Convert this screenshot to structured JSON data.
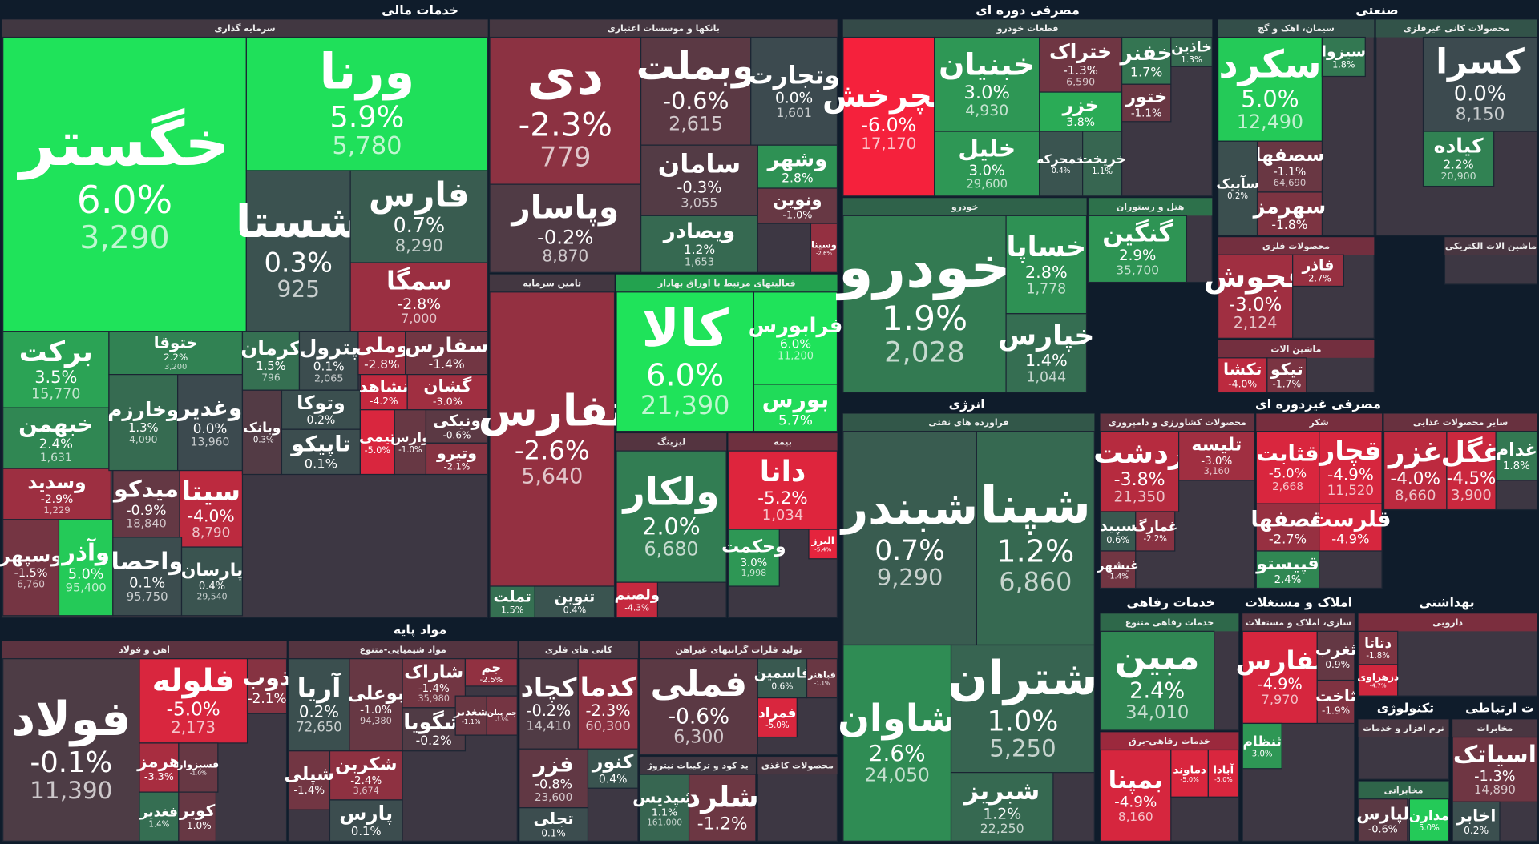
{
  "sectors": [
    {
      "title": "خدمات مالی",
      "groups": [
        {
          "title": "سرمایه گذاری",
          "tiles": [
            {
              "name": "خگستر",
              "change": "6.0%",
              "price": "3,290"
            },
            {
              "name": "ورنا",
              "change": "5.9%",
              "price": "5,780"
            },
            {
              "name": "شستا",
              "change": "0.3%",
              "price": "925"
            },
            {
              "name": "فارس",
              "change": "0.7%",
              "price": "8,290"
            },
            {
              "name": "سمگا",
              "change": "-2.8%",
              "price": "7,000"
            },
            {
              "name": "برکت",
              "change": "3.5%",
              "price": "15,770"
            },
            {
              "name": "خبهمن",
              "change": "2.4%",
              "price": "1,631"
            },
            {
              "name": "وسدید",
              "change": "-2.9%",
              "price": "1,229"
            },
            {
              "name": "وسپهر",
              "change": "-1.5%",
              "price": "6,760"
            },
            {
              "name": "وآذر",
              "change": "5.0%",
              "price": "95,400"
            },
            {
              "name": "ختوقا",
              "change": "2.2%",
              "price": "3,200"
            },
            {
              "name": "وخارزم",
              "change": "1.3%",
              "price": "4,090"
            },
            {
              "name": "وغدیر",
              "change": "0.0%",
              "price": "13,960"
            },
            {
              "name": "میدکو",
              "change": "-0.9%",
              "price": "18,840"
            },
            {
              "name": "سیتا",
              "change": "-4.0%",
              "price": "8,790"
            },
            {
              "name": "واحصا",
              "change": "0.1%",
              "price": "95,750"
            },
            {
              "name": "پارسان",
              "change": "0.4%",
              "price": "29,540"
            },
            {
              "name": "کرمان",
              "change": "1.5%",
              "price": "796"
            },
            {
              "name": "پترول",
              "change": "0.1%",
              "price": "2,065"
            },
            {
              "name": "وملی",
              "change": "-2.8%"
            },
            {
              "name": "سفارس",
              "change": "-1.4%"
            },
            {
              "name": "وتوکا",
              "change": "0.2%"
            },
            {
              "name": "نشاهد",
              "change": "-4.2%"
            },
            {
              "name": "گشان",
              "change": "-3.0%"
            },
            {
              "name": "وبانک",
              "change": "-0.3%"
            },
            {
              "name": "تاپیکو",
              "change": "0.1%"
            },
            {
              "name": "تیمی",
              "change": "-5.0%"
            },
            {
              "name": "وارس",
              "change": "-1.0%"
            },
            {
              "name": "ونیکی",
              "change": "-0.6%"
            },
            {
              "name": "وتیرو",
              "change": "-2.1%"
            }
          ]
        },
        {
          "title": "بانکها و موسسات اعتباری",
          "tiles": [
            {
              "name": "دی",
              "change": "-2.3%",
              "price": "779"
            },
            {
              "name": "وپاسار",
              "change": "-0.2%",
              "price": "8,870"
            },
            {
              "name": "وبملت",
              "change": "-0.6%",
              "price": "2,615"
            },
            {
              "name": "وتجارت",
              "change": "0.0%",
              "price": "1,601"
            },
            {
              "name": "سامان",
              "change": "-0.3%",
              "price": "3,055"
            },
            {
              "name": "ویصادر",
              "change": "1.2%",
              "price": "1,653"
            },
            {
              "name": "وشهر",
              "change": "2.8%"
            },
            {
              "name": "ونوین",
              "change": "-1.0%"
            },
            {
              "name": "وسینا",
              "change": "-2.6%"
            }
          ]
        },
        {
          "title": "تامین سرمایه",
          "tiles": [
            {
              "name": "تفارس",
              "change": "-2.6%",
              "price": "5,640"
            },
            {
              "name": "تملت",
              "change": "1.5%"
            },
            {
              "name": "تنوین",
              "change": "0.4%"
            }
          ]
        },
        {
          "title": "فعالیتهای مرتبط با اوراق بهادار",
          "tiles": [
            {
              "name": "کالا",
              "change": "6.0%",
              "price": "21,390"
            },
            {
              "name": "فرابورس",
              "change": "6.0%",
              "price": "11,200"
            },
            {
              "name": "بورس",
              "change": "5.7%"
            }
          ]
        },
        {
          "title": "لیزینگ",
          "tiles": [
            {
              "name": "ولکار",
              "change": "2.0%",
              "price": "6,680"
            },
            {
              "name": "ولصنم",
              "change": "-4.3%"
            }
          ]
        },
        {
          "title": "بیمه",
          "tiles": [
            {
              "name": "دانا",
              "change": "-5.2%",
              "price": "1,034"
            },
            {
              "name": "وحکمت",
              "change": "3.0%",
              "price": "1,998"
            },
            {
              "name": "البرز",
              "change": "-5.4%"
            }
          ]
        }
      ]
    },
    {
      "title": "مصرفی دوره ای",
      "groups": [
        {
          "title": "قطعات خودرو",
          "tiles": [
            {
              "name": "خچرخش",
              "change": "-6.0%",
              "price": "17,170"
            },
            {
              "name": "خبنیان",
              "change": "3.0%",
              "price": "4,930"
            },
            {
              "name": "خلیل",
              "change": "3.0%",
              "price": "29,600"
            },
            {
              "name": "ختراک",
              "change": "-1.3%",
              "price": "6,590"
            },
            {
              "name": "خزر",
              "change": "3.8%"
            },
            {
              "name": "خمحرکه",
              "change": "0.4%"
            },
            {
              "name": "خریخت",
              "change": "1.1%"
            },
            {
              "name": "خفنر",
              "change": "1.7%"
            },
            {
              "name": "ختور",
              "change": "-1.1%"
            },
            {
              "name": "خاذین",
              "change": "1.3%"
            }
          ]
        },
        {
          "title": "خودرو",
          "tiles": [
            {
              "name": "خودرو",
              "change": "1.9%",
              "price": "2,028"
            },
            {
              "name": "خساپا",
              "change": "2.8%",
              "price": "1,778"
            },
            {
              "name": "خپارس",
              "change": "1.4%",
              "price": "1,044"
            }
          ]
        },
        {
          "title": "هتل و رستوران",
          "tiles": [
            {
              "name": "گنگین",
              "change": "2.9%",
              "price": "35,700"
            }
          ]
        }
      ]
    },
    {
      "title": "صنعتی",
      "groups": [
        {
          "title": "سیمان، اهک و گچ",
          "tiles": [
            {
              "name": "سکرد",
              "change": "5.0%",
              "price": "12,490"
            },
            {
              "name": "سصفها",
              "change": "-1.1%",
              "price": "64,690"
            },
            {
              "name": "سآبیک",
              "change": "0.2%"
            },
            {
              "name": "سهرمز",
              "change": "-1.8%"
            },
            {
              "name": "سیزوا",
              "change": "1.8%"
            }
          ]
        },
        {
          "title": "محصولات کانی غیرفلزی",
          "tiles": [
            {
              "name": "کسرا",
              "change": "0.0%",
              "price": "8,150"
            },
            {
              "name": "کیاده",
              "change": "2.2%",
              "price": "20,900"
            }
          ]
        },
        {
          "title": "محصولات فلزی",
          "tiles": [
            {
              "name": "فجوش",
              "change": "-3.0%",
              "price": "2,124"
            },
            {
              "name": "فاذر",
              "change": "-2.7%"
            }
          ]
        },
        {
          "title": "ماشین الات",
          "tiles": [
            {
              "name": "تکشا",
              "change": "-4.0%"
            },
            {
              "name": "تیکو",
              "change": "-1.7%"
            }
          ]
        },
        {
          "title": "ماشین الات الکتریکی",
          "tiles": []
        }
      ]
    },
    {
      "title": "انرژی",
      "groups": [
        {
          "title": "فراورده های نفتی",
          "tiles": [
            {
              "name": "شبندر",
              "change": "0.7%",
              "price": "9,290"
            },
            {
              "name": "شپنا",
              "change": "1.2%",
              "price": "6,860"
            },
            {
              "name": "شاوان",
              "change": "2.6%",
              "price": "24,050"
            },
            {
              "name": "شتران",
              "change": "1.0%",
              "price": "5,250"
            },
            {
              "name": "شبریز",
              "change": "1.2%",
              "price": "22,250"
            }
          ]
        }
      ]
    },
    {
      "title": "مصرفی غیردوره ای",
      "groups": [
        {
          "title": "محصولات کشاورزی و دامپروری",
          "tiles": [
            {
              "name": "زدشت",
              "change": "-3.8%",
              "price": "21,350"
            },
            {
              "name": "تلیسه",
              "change": "-3.0%",
              "price": "3,160"
            },
            {
              "name": "سپید",
              "change": "0.6%"
            },
            {
              "name": "غمارگ",
              "change": "-2.2%"
            },
            {
              "name": "غیشهر",
              "change": "-1.4%"
            }
          ]
        },
        {
          "title": "شکر",
          "tiles": [
            {
              "name": "قثابت",
              "change": "-5.0%",
              "price": "2,668"
            },
            {
              "name": "قچار",
              "change": "-4.9%",
              "price": "11,520"
            },
            {
              "name": "قصفها",
              "change": "-2.7%"
            },
            {
              "name": "قلرست",
              "change": "-4.9%"
            },
            {
              "name": "قپیستو",
              "change": "2.4%"
            }
          ]
        },
        {
          "title": "سایر محصولات غذایی",
          "tiles": [
            {
              "name": "غزر",
              "change": "-4.0%",
              "price": "8,660"
            },
            {
              "name": "غگل",
              "change": "-4.5%",
              "price": "3,900"
            },
            {
              "name": "غدام",
              "change": "1.8%"
            }
          ]
        }
      ]
    },
    {
      "title": "خدمات رفاهی",
      "groups": [
        {
          "title": "خدمات رفاهی متنوع",
          "tiles": [
            {
              "name": "مبین",
              "change": "2.4%",
              "price": "34,010"
            }
          ]
        },
        {
          "title": "خدمات رفاهی-برق",
          "tiles": [
            {
              "name": "بمپنا",
              "change": "-4.9%",
              "price": "8,160"
            },
            {
              "name": "دماوند",
              "change": "-5.0%"
            },
            {
              "name": "آبادا",
              "change": "-5.0%"
            }
          ]
        }
      ]
    },
    {
      "title": "املاک و مستغلات",
      "groups": [
        {
          "title": "سازی، املاک و مستغلات",
          "tiles": [
            {
              "name": "ثفارس",
              "change": "-4.9%",
              "price": "7,970"
            },
            {
              "name": "ثغرب",
              "change": "-0.9%"
            },
            {
              "name": "ثاخت",
              "change": "-1.9%"
            },
            {
              "name": "ثنظام",
              "change": "3.0%"
            }
          ]
        }
      ]
    },
    {
      "title": "بهداشتی",
      "groups": [
        {
          "title": "دارویی",
          "tiles": [
            {
              "name": "دتاتا",
              "change": "-1.8%"
            },
            {
              "name": "دزهراوی",
              "change": "-4.7%"
            }
          ]
        }
      ]
    },
    {
      "title": "تکنولوژی",
      "groups": [
        {
          "title": "نرم افزار و خدمات",
          "tiles": []
        },
        {
          "title": "مخابراتی",
          "tiles": [
            {
              "name": "لپارس",
              "change": "-0.6%"
            },
            {
              "name": "مدارن",
              "change": "5.0%"
            }
          ]
        }
      ]
    },
    {
      "title": "ت ارتباطی",
      "groups": [
        {
          "title": "مخابرات",
          "tiles": [
            {
              "name": "اسیاتک",
              "change": "-1.3%",
              "price": "14,890"
            },
            {
              "name": "اخابر",
              "change": "0.2%"
            }
          ]
        }
      ]
    },
    {
      "title": "مواد پایه",
      "groups": [
        {
          "title": "اهن و فولاد",
          "tiles": [
            {
              "name": "فولاد",
              "change": "-0.1%",
              "price": "11,390"
            },
            {
              "name": "فلوله",
              "change": "-5.0%",
              "price": "2,173"
            },
            {
              "name": "ذوب",
              "change": "-2.1%"
            },
            {
              "name": "هرمز",
              "change": "-3.3%"
            },
            {
              "name": "فسبزوار",
              "change": "-1.0%"
            },
            {
              "name": "فغدیر",
              "change": "1.4%"
            },
            {
              "name": "کویر",
              "change": "-1.0%"
            }
          ]
        },
        {
          "title": "مواد شیمیایی-متنوع",
          "tiles": [
            {
              "name": "آریا",
              "change": "0.2%",
              "price": "72,650"
            },
            {
              "name": "بوعلی",
              "change": "-1.0%",
              "price": "94,380"
            },
            {
              "name": "شاراک",
              "change": "-1.4%",
              "price": "35,980"
            },
            {
              "name": "شگویا",
              "change": "-0.2%"
            },
            {
              "name": "شکربن",
              "change": "-2.4%",
              "price": "3,674"
            },
            {
              "name": "شپلی",
              "change": "-1.4%"
            },
            {
              "name": "پارس",
              "change": "0.1%"
            },
            {
              "name": "جم",
              "change": "-2.5%"
            },
            {
              "name": "شغدیر",
              "change": "-1.1%"
            },
            {
              "name": "جم پیلن",
              "change": "-1.5%"
            }
          ]
        },
        {
          "title": "کانی های فلزی",
          "tiles": [
            {
              "name": "کچاد",
              "change": "-0.2%",
              "price": "14,410"
            },
            {
              "name": "کدما",
              "change": "-2.3%",
              "price": "60,300"
            },
            {
              "name": "فزر",
              "change": "-0.8%",
              "price": "23,600"
            },
            {
              "name": "کنور",
              "change": "0.4%"
            },
            {
              "name": "تجلی",
              "change": "0.1%"
            }
          ]
        },
        {
          "title": "تولید فلزات گرانبهای غیراهن",
          "tiles": [
            {
              "name": "فملی",
              "change": "-0.6%",
              "price": "6,300"
            },
            {
              "name": "فاسمین",
              "change": "0.6%"
            },
            {
              "name": "فباهنر",
              "change": "-1.1%"
            },
            {
              "name": "فمراد",
              "change": "-5.0%"
            }
          ]
        },
        {
          "title": "ید کود و ترکیبات نیتروژ",
          "tiles": [
            {
              "name": "شپدیس",
              "change": "1.1%",
              "price": "161,000"
            },
            {
              "name": "شلرد",
              "change": "-1.2%"
            }
          ]
        },
        {
          "title": "محصولات کاغذی",
          "tiles": []
        }
      ]
    }
  ]
}
